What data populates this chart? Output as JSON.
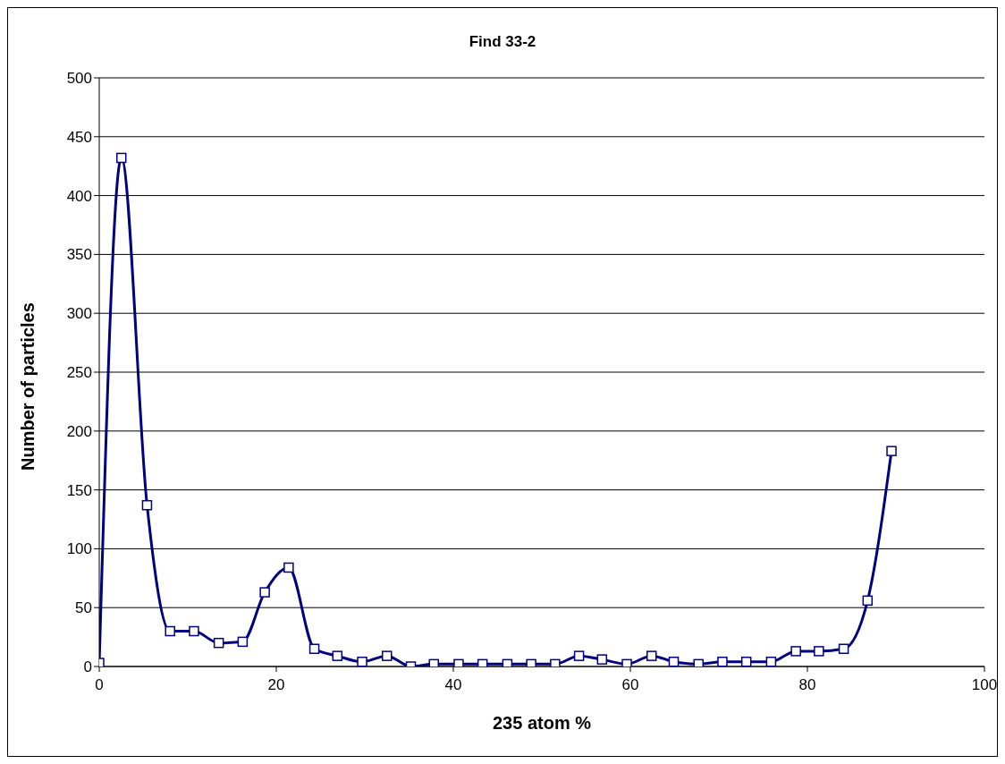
{
  "chart_data": {
    "type": "line",
    "title": "Find 33-2",
    "xlabel": "235 atom %",
    "ylabel": "Number of particles",
    "x": [
      0,
      2.5,
      5.4,
      8,
      10.7,
      13.5,
      16.2,
      18.7,
      21.4,
      24.3,
      26.9,
      29.7,
      32.5,
      35.2,
      37.8,
      40.6,
      43.3,
      46.1,
      48.8,
      51.5,
      54.2,
      56.8,
      59.6,
      62.4,
      64.9,
      67.7,
      70.4,
      73.1,
      75.9,
      78.7,
      81.3,
      84.1,
      86.8,
      89.5
    ],
    "series": [
      {
        "color": "#000080",
        "values": [
          3,
          432,
          137,
          30,
          30,
          20,
          21,
          63,
          84,
          15,
          9,
          4,
          9,
          0,
          2,
          2,
          2,
          2,
          2,
          2,
          9,
          6,
          2,
          9,
          4,
          2,
          4,
          4,
          4,
          13,
          13,
          15,
          56,
          183
        ]
      }
    ],
    "xlim": [
      0,
      100
    ],
    "xticks": [
      0,
      20,
      40,
      60,
      80,
      100
    ],
    "ylim": [
      0,
      500
    ],
    "yticks": [
      0,
      50,
      100,
      150,
      200,
      250,
      300,
      350,
      400,
      450,
      500
    ],
    "grid": "y",
    "marker": "square",
    "line_style": "solid",
    "legend": false
  }
}
